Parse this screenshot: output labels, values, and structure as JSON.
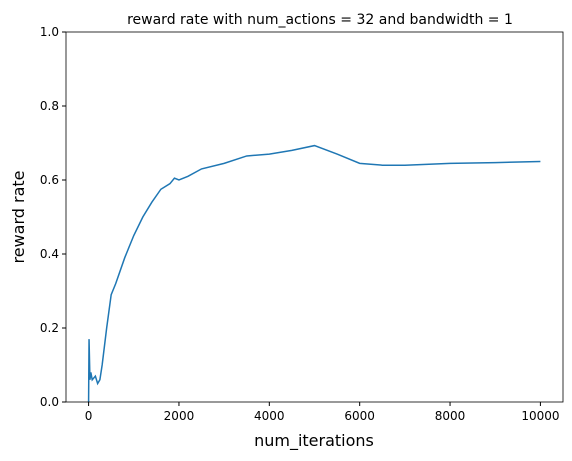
{
  "chart_data": {
    "type": "line",
    "title": "reward rate with num_actions = 32 and bandwidth = 1",
    "xlabel": "num_iterations",
    "ylabel": "reward rate",
    "x": [
      0,
      10,
      30,
      50,
      80,
      150,
      200,
      250,
      300,
      400,
      500,
      600,
      800,
      1000,
      1200,
      1400,
      1600,
      1800,
      1900,
      2000,
      2200,
      2500,
      3000,
      3500,
      4000,
      4500,
      5000,
      5500,
      6000,
      6500,
      7000,
      8000,
      9000,
      10000
    ],
    "series": [
      {
        "name": "reward rate",
        "color": "#1f77b4",
        "values": [
          0.0,
          0.17,
          0.06,
          0.08,
          0.06,
          0.07,
          0.05,
          0.06,
          0.1,
          0.2,
          0.29,
          0.32,
          0.39,
          0.45,
          0.5,
          0.54,
          0.575,
          0.59,
          0.605,
          0.6,
          0.61,
          0.63,
          0.645,
          0.665,
          0.67,
          0.68,
          0.693,
          0.67,
          0.645,
          0.64,
          0.64,
          0.645,
          0.647,
          0.65
        ]
      }
    ],
    "xlim": [
      -500,
      10500
    ],
    "xticks": [
      0,
      2000,
      4000,
      6000,
      8000,
      10000
    ],
    "ylim": [
      0,
      1
    ],
    "yticks": [
      {
        "value": 0,
        "label": "0.0"
      },
      0.2,
      0.4,
      0.6,
      0.8,
      {
        "value": 1,
        "label": "1.0"
      }
    ]
  }
}
